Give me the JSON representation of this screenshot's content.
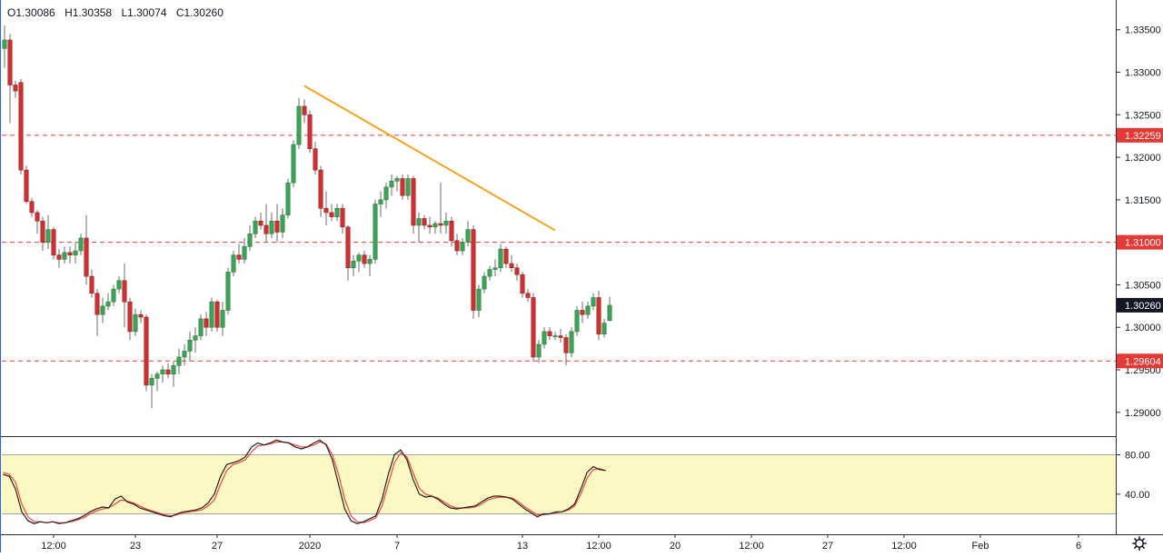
{
  "ohlc": {
    "open": "O1.30086",
    "high": "H1.30358",
    "low": "L1.30074",
    "close": "C1.30260"
  },
  "colors": {
    "up": "#26a69a",
    "up_fill": "#3ca35a",
    "down": "#c62828",
    "down_fill": "#d32f2f",
    "level_line": "#e53935",
    "trendline": "#f6a31d",
    "last_price_bg": "#131722",
    "stoch_k": "#222222",
    "stoch_d": "#f44336",
    "stoch_band": "#fbf8c4"
  },
  "chart_data": {
    "type": "candlestick",
    "price_axis": {
      "ticks": [
        "1.33500",
        "1.33000",
        "1.32500",
        "1.32000",
        "1.31500",
        "1.31000",
        "1.30500",
        "1.30000",
        "1.29500",
        "1.29000"
      ],
      "range": [
        1.2872,
        1.3385
      ]
    },
    "price_labels": [
      {
        "text": "1.32259",
        "value": 1.32259,
        "style": "level"
      },
      {
        "text": "1.31000",
        "value": 1.31,
        "style": "level"
      },
      {
        "text": "1.30260",
        "value": 1.3026,
        "style": "last"
      },
      {
        "text": "1.29604",
        "value": 1.29604,
        "style": "level"
      }
    ],
    "horizontal_levels": [
      1.32259,
      1.31,
      1.29604
    ],
    "trendline": {
      "from": [
        55,
        1.3284
      ],
      "to": [
        101,
        1.3114
      ]
    },
    "time_axis": [
      {
        "label": "12:00",
        "bar": 9
      },
      {
        "label": "23",
        "bar": 24
      },
      {
        "label": "27",
        "bar": 39
      },
      {
        "label": "2020",
        "bar": 56
      },
      {
        "label": "7",
        "bar": 72
      },
      {
        "label": "13",
        "bar": 95
      },
      {
        "label": "12:00",
        "bar": 109
      },
      {
        "label": "20",
        "bar": 123
      },
      {
        "label": "12:00",
        "bar": 137
      },
      {
        "label": "27",
        "bar": 151
      },
      {
        "label": "12:00",
        "bar": 165
      },
      {
        "label": "Feb",
        "bar": 179
      },
      {
        "label": "6",
        "bar": 197
      }
    ],
    "candles": [
      [
        1.3328,
        1.3355,
        1.3305,
        1.3338
      ],
      [
        1.3338,
        1.3345,
        1.324,
        1.3285
      ],
      [
        1.3285,
        1.329,
        1.327,
        1.3278
      ],
      [
        1.3288,
        1.3292,
        1.318,
        1.3185
      ],
      [
        1.3185,
        1.319,
        1.3145,
        1.3148
      ],
      [
        1.3148,
        1.3152,
        1.313,
        1.3135
      ],
      [
        1.3135,
        1.3138,
        1.311,
        1.3125
      ],
      [
        1.3125,
        1.313,
        1.309,
        1.31
      ],
      [
        1.31,
        1.3132,
        1.3092,
        1.3115
      ],
      [
        1.3115,
        1.3118,
        1.308,
        1.3085
      ],
      [
        1.3085,
        1.3092,
        1.307,
        1.308
      ],
      [
        1.308,
        1.3095,
        1.3075,
        1.3088
      ],
      [
        1.3088,
        1.3095,
        1.3075,
        1.3085
      ],
      [
        1.3085,
        1.31,
        1.3075,
        1.309
      ],
      [
        1.309,
        1.311,
        1.3085,
        1.3105
      ],
      [
        1.3105,
        1.3132,
        1.305,
        1.306
      ],
      [
        1.306,
        1.3068,
        1.3035,
        1.304
      ],
      [
        1.304,
        1.3045,
        1.299,
        1.3015
      ],
      [
        1.3015,
        1.3035,
        1.3005,
        1.3025
      ],
      [
        1.3025,
        1.304,
        1.302,
        1.303
      ],
      [
        1.303,
        1.305,
        1.3025,
        1.3045
      ],
      [
        1.3045,
        1.306,
        1.304,
        1.3055
      ],
      [
        1.3055,
        1.3075,
        1.3,
        1.303
      ],
      [
        1.303,
        1.3035,
        1.2985,
        1.2995
      ],
      [
        1.2995,
        1.3022,
        1.299,
        1.3015
      ],
      [
        1.3015,
        1.302,
        1.3005,
        1.3012
      ],
      [
        1.3012,
        1.3015,
        1.2925,
        1.2932
      ],
      [
        1.2932,
        1.2945,
        1.2905,
        1.294
      ],
      [
        1.294,
        1.2948,
        1.2925,
        1.2945
      ],
      [
        1.2945,
        1.2955,
        1.2935,
        1.295
      ],
      [
        1.295,
        1.2958,
        1.294,
        1.2945
      ],
      [
        1.2945,
        1.296,
        1.293,
        1.2955
      ],
      [
        1.2955,
        1.2975,
        1.2945,
        1.2965
      ],
      [
        1.2965,
        1.298,
        1.2955,
        1.2972
      ],
      [
        1.2972,
        1.2995,
        1.296,
        1.2985
      ],
      [
        1.2985,
        1.3,
        1.297,
        1.299
      ],
      [
        1.299,
        1.3015,
        1.2985,
        1.301
      ],
      [
        1.301,
        1.3018,
        1.299,
        1.3
      ],
      [
        1.3,
        1.3035,
        1.2995,
        1.303
      ],
      [
        1.303,
        1.3032,
        1.2995,
        1.3
      ],
      [
        1.3,
        1.303,
        1.299,
        1.302
      ],
      [
        1.302,
        1.307,
        1.3015,
        1.3065
      ],
      [
        1.3065,
        1.309,
        1.306,
        1.3085
      ],
      [
        1.3085,
        1.3098,
        1.3075,
        1.308
      ],
      [
        1.308,
        1.3105,
        1.3075,
        1.3095
      ],
      [
        1.3095,
        1.312,
        1.309,
        1.311
      ],
      [
        1.311,
        1.313,
        1.3105,
        1.3125
      ],
      [
        1.3125,
        1.3135,
        1.3115,
        1.312
      ],
      [
        1.312,
        1.3145,
        1.31,
        1.311
      ],
      [
        1.311,
        1.3135,
        1.3105,
        1.3125
      ],
      [
        1.3125,
        1.3145,
        1.31,
        1.3112
      ],
      [
        1.3112,
        1.314,
        1.3105,
        1.3132
      ],
      [
        1.3132,
        1.3175,
        1.3128,
        1.317
      ],
      [
        1.317,
        1.322,
        1.3165,
        1.3215
      ],
      [
        1.3215,
        1.327,
        1.321,
        1.326
      ],
      [
        1.326,
        1.3268,
        1.324,
        1.325
      ],
      [
        1.325,
        1.3255,
        1.3205,
        1.321
      ],
      [
        1.321,
        1.3218,
        1.318,
        1.3185
      ],
      [
        1.3185,
        1.319,
        1.313,
        1.314
      ],
      [
        1.314,
        1.316,
        1.312,
        1.3135
      ],
      [
        1.3135,
        1.3145,
        1.3125,
        1.313
      ],
      [
        1.313,
        1.3145,
        1.3125,
        1.314
      ],
      [
        1.314,
        1.3145,
        1.311,
        1.3118
      ],
      [
        1.3118,
        1.312,
        1.3055,
        1.307
      ],
      [
        1.307,
        1.3085,
        1.306,
        1.3078
      ],
      [
        1.3078,
        1.3088,
        1.3065,
        1.3085
      ],
      [
        1.3085,
        1.309,
        1.307,
        1.3075
      ],
      [
        1.3075,
        1.3085,
        1.306,
        1.308
      ],
      [
        1.308,
        1.315,
        1.3075,
        1.3145
      ],
      [
        1.3145,
        1.316,
        1.313,
        1.315
      ],
      [
        1.315,
        1.317,
        1.314,
        1.3165
      ],
      [
        1.3165,
        1.318,
        1.3155,
        1.3172
      ],
      [
        1.3172,
        1.3178,
        1.316,
        1.3175
      ],
      [
        1.3175,
        1.318,
        1.315,
        1.3155
      ],
      [
        1.3155,
        1.318,
        1.315,
        1.3175
      ],
      [
        1.3175,
        1.3178,
        1.311,
        1.312
      ],
      [
        1.312,
        1.3135,
        1.31,
        1.3128
      ],
      [
        1.3128,
        1.3132,
        1.3115,
        1.312
      ],
      [
        1.312,
        1.313,
        1.311,
        1.3118
      ],
      [
        1.3118,
        1.3125,
        1.311,
        1.3122
      ],
      [
        1.3122,
        1.317,
        1.311,
        1.312
      ],
      [
        1.312,
        1.3135,
        1.311,
        1.3125
      ],
      [
        1.3125,
        1.313,
        1.3095,
        1.3102
      ],
      [
        1.3102,
        1.311,
        1.3085,
        1.309
      ],
      [
        1.309,
        1.3105,
        1.3085,
        1.31
      ],
      [
        1.31,
        1.3125,
        1.3095,
        1.3115
      ],
      [
        1.3115,
        1.312,
        1.301,
        1.302
      ],
      [
        1.302,
        1.305,
        1.3012,
        1.3045
      ],
      [
        1.3045,
        1.3065,
        1.304,
        1.306
      ],
      [
        1.306,
        1.3072,
        1.3055,
        1.3068
      ],
      [
        1.3068,
        1.308,
        1.306,
        1.307
      ],
      [
        1.307,
        1.3098,
        1.3065,
        1.3092
      ],
      [
        1.3092,
        1.3095,
        1.307,
        1.3075
      ],
      [
        1.3075,
        1.3085,
        1.3065,
        1.307
      ],
      [
        1.307,
        1.3075,
        1.3055,
        1.3062
      ],
      [
        1.3062,
        1.3065,
        1.3035,
        1.304
      ],
      [
        1.304,
        1.3045,
        1.303,
        1.3035
      ],
      [
        1.3035,
        1.304,
        1.296,
        1.2965
      ],
      [
        1.2965,
        1.2985,
        1.2958,
        1.298
      ],
      [
        1.298,
        1.3,
        1.2975,
        1.2995
      ],
      [
        1.2995,
        1.3,
        1.2985,
        1.299
      ],
      [
        1.299,
        1.2995,
        1.2985,
        1.299
      ],
      [
        1.299,
        1.2998,
        1.2982,
        1.2988
      ],
      [
        1.2988,
        1.2992,
        1.2955,
        1.297
      ],
      [
        1.297,
        1.3,
        1.2965,
        1.2995
      ],
      [
        1.2995,
        1.3025,
        1.299,
        1.302
      ],
      [
        1.302,
        1.303,
        1.3005,
        1.3015
      ],
      [
        1.3015,
        1.303,
        1.301,
        1.3025
      ],
      [
        1.3025,
        1.304,
        1.302,
        1.3035
      ],
      [
        1.3035,
        1.3043,
        1.2985,
        1.2992
      ],
      [
        1.2992,
        1.301,
        1.2988,
        1.3005
      ],
      [
        1.3008,
        1.3036,
        1.3007,
        1.3026
      ]
    ],
    "stochastic": {
      "axis_ticks": [
        "80.00",
        "40.00"
      ],
      "band": [
        20,
        80
      ],
      "range": [
        0,
        100
      ],
      "k": [
        60,
        58,
        45,
        22,
        13,
        10,
        12,
        11,
        12,
        10,
        11,
        13,
        15,
        18,
        22,
        25,
        27,
        26,
        35,
        38,
        32,
        30,
        26,
        24,
        22,
        20,
        18,
        17,
        20,
        22,
        23,
        24,
        26,
        31,
        40,
        58,
        70,
        72,
        74,
        78,
        88,
        92,
        90,
        92,
        95,
        93,
        92,
        88,
        86,
        88,
        92,
        95,
        90,
        75,
        50,
        25,
        13,
        10,
        12,
        15,
        18,
        35,
        60,
        80,
        85,
        75,
        55,
        40,
        37,
        38,
        35,
        30,
        26,
        25,
        26,
        27,
        28,
        32,
        36,
        38,
        38,
        37,
        35,
        30,
        25,
        21,
        17,
        20,
        20,
        22,
        22,
        25,
        30,
        45,
        62,
        68,
        65,
        64
      ],
      "d": [
        62,
        60,
        52,
        30,
        17,
        12,
        12,
        11,
        12,
        11,
        11,
        12,
        14,
        16,
        20,
        23,
        25,
        26,
        30,
        34,
        33,
        31,
        28,
        25,
        23,
        21,
        19,
        18,
        19,
        21,
        22,
        23,
        24,
        28,
        34,
        50,
        64,
        70,
        72,
        75,
        83,
        89,
        90,
        91,
        93,
        93,
        92,
        90,
        88,
        88,
        90,
        93,
        91,
        80,
        60,
        35,
        18,
        12,
        11,
        13,
        16,
        28,
        50,
        72,
        82,
        78,
        62,
        46,
        40,
        38,
        36,
        32,
        28,
        26,
        26,
        26,
        27,
        30,
        34,
        36,
        37,
        37,
        36,
        32,
        27,
        23,
        19,
        19,
        20,
        21,
        22,
        24,
        28,
        40,
        56,
        65,
        66,
        64
      ]
    }
  }
}
